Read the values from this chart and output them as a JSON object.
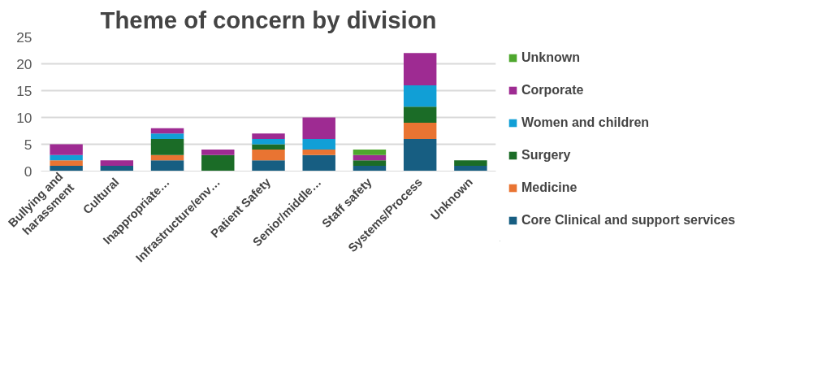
{
  "chart_data": {
    "type": "bar",
    "title": "Theme of concern by division",
    "stacked": true,
    "categories": [
      "Bullying and harassment",
      "Cultural",
      "Inappropriate…",
      "Infrastructure/env…",
      "Patient Safety",
      "Senior/middle…",
      "Staff safety",
      "Systems/Process",
      "Unknown"
    ],
    "series": [
      {
        "name": "Core Clinical and support services",
        "color": "#175e82",
        "values": [
          1,
          1,
          2,
          0,
          2,
          3,
          1,
          6,
          1
        ]
      },
      {
        "name": "Medicine",
        "color": "#e97432",
        "values": [
          1,
          0,
          1,
          0,
          2,
          1,
          0,
          3,
          0
        ]
      },
      {
        "name": "Surgery",
        "color": "#1b6c27",
        "values": [
          0,
          0,
          3,
          3,
          1,
          0,
          1,
          3,
          1
        ]
      },
      {
        "name": "Women and children",
        "color": "#119fd6",
        "values": [
          1,
          0,
          1,
          0,
          1,
          2,
          0,
          4,
          0
        ]
      },
      {
        "name": "Corporate",
        "color": "#9e2b92",
        "values": [
          2,
          1,
          1,
          1,
          1,
          4,
          1,
          6,
          0
        ]
      },
      {
        "name": "Unknown",
        "color": "#4ea72e",
        "values": [
          0,
          0,
          0,
          0,
          0,
          0,
          1,
          0,
          0
        ]
      }
    ],
    "ylim": [
      0,
      25
    ],
    "yticks": [
      0,
      5,
      10,
      15,
      20,
      25
    ],
    "grid": "y",
    "legend": "right"
  }
}
